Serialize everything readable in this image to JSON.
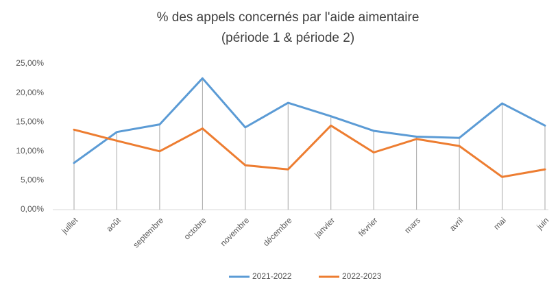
{
  "chart_data": {
    "type": "line",
    "title": [
      "% des appels concernés par l'aide aimentaire",
      "(période 1 & période 2)"
    ],
    "categories": [
      "juillet",
      "août",
      "septembre",
      "octobre",
      "novembre",
      "décembre",
      "janvier",
      "février",
      "mars",
      "avril",
      "mai",
      "juin"
    ],
    "series": [
      {
        "name": "2021-2022",
        "color": "#5b9bd5",
        "values": [
          8.0,
          13.3,
          14.6,
          22.5,
          14.1,
          18.3,
          16.0,
          13.5,
          12.5,
          12.3,
          18.2,
          14.4
        ]
      },
      {
        "name": "2022-2023",
        "color": "#ed7d31",
        "values": [
          13.7,
          11.8,
          10.0,
          13.9,
          7.6,
          6.9,
          14.4,
          9.8,
          12.1,
          10.9,
          5.6,
          6.9
        ]
      }
    ],
    "ylim": [
      0,
      25
    ],
    "yticks": [
      {
        "value": 0,
        "label": "0,00%"
      },
      {
        "value": 5,
        "label": "5,00%"
      },
      {
        "value": 10,
        "label": "10,00%"
      },
      {
        "value": 15,
        "label": "15,00%"
      },
      {
        "value": 20,
        "label": "20,00%"
      },
      {
        "value": 25,
        "label": "25,00%"
      }
    ],
    "grid": false,
    "legend": "bottom"
  }
}
